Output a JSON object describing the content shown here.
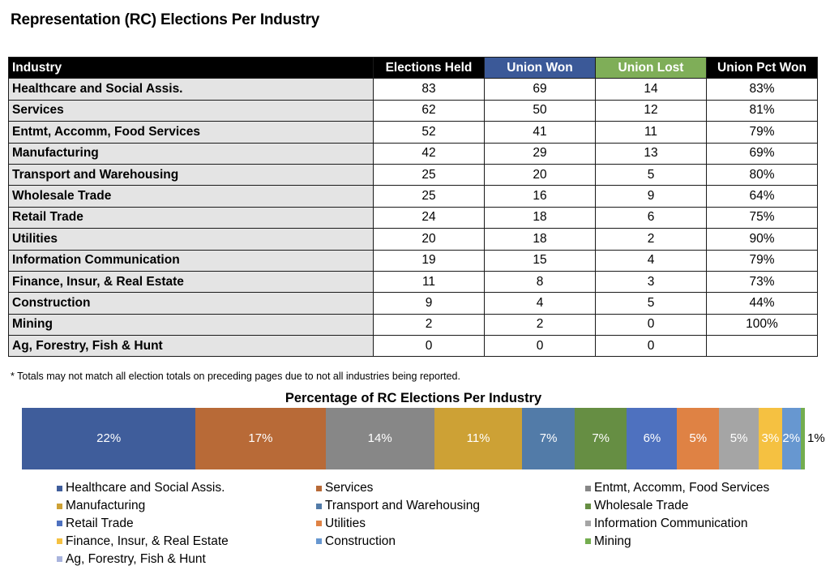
{
  "page": {
    "title": "Representation (RC) Elections Per Industry",
    "footnote": "* Totals may not match all election totals on preceding pages due to not all industries being reported."
  },
  "table": {
    "headers": [
      "Industry",
      "Elections Held",
      "Union Won",
      "Union Lost",
      "Union Pct Won"
    ],
    "header_colors": {
      "default": "#000000",
      "union_won": "#3b5998",
      "union_lost": "#7fae58"
    },
    "rows": [
      {
        "industry": "Healthcare and Social Assis.",
        "held": "83",
        "won": "69",
        "lost": "14",
        "pct": "83%"
      },
      {
        "industry": "Services",
        "held": "62",
        "won": "50",
        "lost": "12",
        "pct": "81%"
      },
      {
        "industry": "Entmt, Accomm, Food Services",
        "held": "52",
        "won": "41",
        "lost": "11",
        "pct": "79%"
      },
      {
        "industry": "Manufacturing",
        "held": "42",
        "won": "29",
        "lost": "13",
        "pct": "69%"
      },
      {
        "industry": "Transport and Warehousing",
        "held": "25",
        "won": "20",
        "lost": "5",
        "pct": "80%"
      },
      {
        "industry": "Wholesale Trade",
        "held": "25",
        "won": "16",
        "lost": "9",
        "pct": "64%"
      },
      {
        "industry": "Retail Trade",
        "held": "24",
        "won": "18",
        "lost": "6",
        "pct": "75%"
      },
      {
        "industry": "Utilities",
        "held": "20",
        "won": "18",
        "lost": "2",
        "pct": "90%"
      },
      {
        "industry": "Information Communication",
        "held": "19",
        "won": "15",
        "lost": "4",
        "pct": "79%"
      },
      {
        "industry": "Finance, Insur, & Real Estate",
        "held": "11",
        "won": "8",
        "lost": "3",
        "pct": "73%"
      },
      {
        "industry": "Construction",
        "held": "9",
        "won": "4",
        "lost": "5",
        "pct": "44%"
      },
      {
        "industry": "Mining",
        "held": "2",
        "won": "2",
        "lost": "0",
        "pct": "100%"
      },
      {
        "industry": "Ag, Forestry, Fish & Hunt",
        "held": "0",
        "won": "0",
        "lost": "0",
        "pct": ""
      }
    ]
  },
  "chart_data": {
    "type": "bar",
    "subtype": "100% stacked horizontal",
    "title": "Percentage of RC Elections Per Industry",
    "xlabel": "",
    "ylabel": "",
    "legend_position": "bottom",
    "grid": false,
    "series": [
      {
        "name": "Healthcare and Social Assis.",
        "value": 83,
        "label": "22%",
        "color": "#3f5d9b"
      },
      {
        "name": "Services",
        "value": 62,
        "label": "17%",
        "color": "#b86a37"
      },
      {
        "name": "Entmt, Accomm, Food Services",
        "value": 52,
        "label": "14%",
        "color": "#878787"
      },
      {
        "name": "Manufacturing",
        "value": 42,
        "label": "11%",
        "color": "#cda135"
      },
      {
        "name": "Transport and Warehousing",
        "value": 25,
        "label": "7%",
        "color": "#527ba8"
      },
      {
        "name": "Wholesale Trade",
        "value": 25,
        "label": "7%",
        "color": "#668e43"
      },
      {
        "name": "Retail Trade",
        "value": 24,
        "label": "6%",
        "color": "#4e71bf"
      },
      {
        "name": "Utilities",
        "value": 20,
        "label": "5%",
        "color": "#df8244"
      },
      {
        "name": "Information Communication",
        "value": 19,
        "label": "5%",
        "color": "#a5a5a5"
      },
      {
        "name": "Finance, Insur, & Real Estate",
        "value": 11,
        "label": "3%",
        "color": "#f5c141"
      },
      {
        "name": "Construction",
        "value": 9,
        "label": "2%",
        "color": "#6797d0"
      },
      {
        "name": "Mining",
        "value": 2,
        "label": "1%",
        "color": "#74ad4f"
      },
      {
        "name": "Ag, Forestry, Fish & Hunt",
        "value": 0,
        "label": "",
        "color": "#a9b4dd"
      }
    ]
  }
}
